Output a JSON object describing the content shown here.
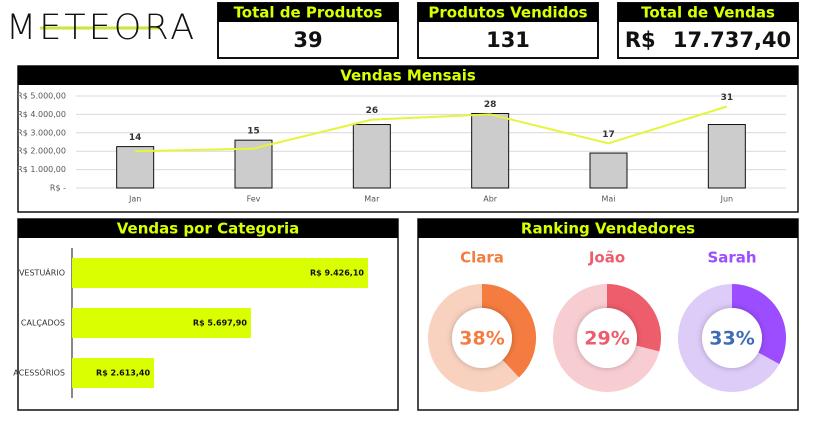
{
  "logo": "METEORA",
  "kpis": [
    {
      "title": "Total de Produtos",
      "value": 39
    },
    {
      "title": "Produtos Vendidos",
      "value": 131
    },
    {
      "title": "Total de Vendas",
      "value": "R$ 17.737,40"
    }
  ],
  "chart_data": [
    {
      "type": "bar",
      "title": "Vendas Mensais",
      "categories": [
        "Jan",
        "Fev",
        "Mar",
        "Abr",
        "Mai",
        "Jun"
      ],
      "series": [
        {
          "type": "bar",
          "color": "#cccccc",
          "values": [
            2250,
            2600,
            3450,
            4050,
            1900,
            3450
          ]
        },
        {
          "type": "line",
          "color": "#e6f53a",
          "axis": "y2",
          "data_labels": true,
          "values": [
            14,
            15,
            26,
            28,
            17,
            31
          ]
        }
      ],
      "ylim": [
        0,
        5000
      ],
      "yticks": [
        {
          "value": 0,
          "label": "R$ -"
        },
        {
          "value": 1000,
          "label": "R$ 1.000,00"
        },
        {
          "value": 2000,
          "label": "R$ 2.000,00"
        },
        {
          "value": 3000,
          "label": "R$ 3.000,00"
        },
        {
          "value": 4000,
          "label": "R$ 4.000,00"
        },
        {
          "value": 5000,
          "label": "R$ 5.000,00"
        }
      ],
      "y2lim": [
        0,
        35
      ],
      "grid": true
    },
    {
      "type": "hbar",
      "title": "Vendas por Categoria",
      "categories": [
        "VESTUÁRIO",
        "CALÇADOS",
        "ACESSÓRIOS"
      ],
      "values": [
        9426.1,
        5697.9,
        2613.4
      ],
      "value_labels": [
        "R$ 9.426,10",
        "R$ 5.697,90",
        "R$ 2.613,40"
      ],
      "color": "#d9ff00",
      "xlim": [
        0,
        10000
      ]
    },
    {
      "type": "donut",
      "title": "Ranking Vendedores",
      "categories": [
        "Clara",
        "João",
        "Sarah"
      ],
      "values": [
        38,
        29,
        33
      ],
      "value_labels": [
        "38%",
        "29%",
        "33%"
      ],
      "colors": [
        "#f47c40",
        "#ee5d6c",
        "#9b4dff"
      ],
      "track_colors": [
        "#f8d2bf",
        "#f8cdd2",
        "#ddcbf8"
      ],
      "label_colors": [
        "#f47c40",
        "#ee5d6c",
        "#9b4dff"
      ],
      "value_label_colors": [
        "#f47c40",
        "#ee5d6c",
        "#3d6bb5"
      ]
    }
  ]
}
